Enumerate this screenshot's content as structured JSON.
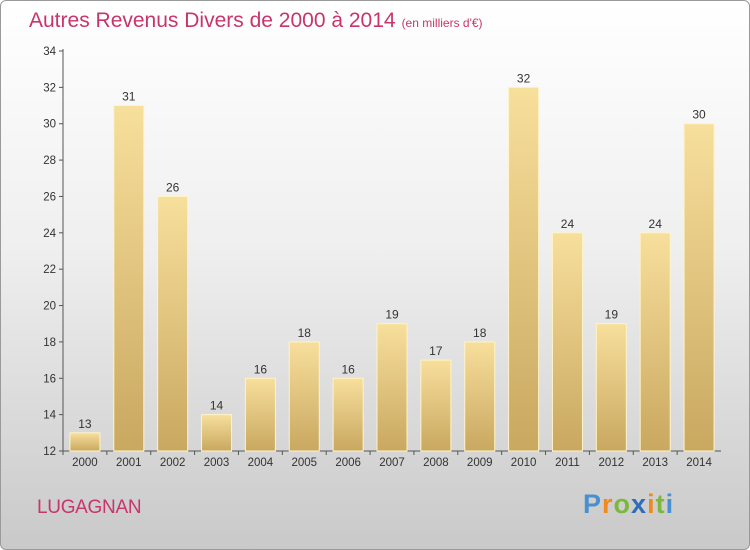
{
  "chart_data": {
    "type": "bar",
    "title": "Autres Revenus Divers de 2000 à 2014",
    "subtitle": "(en milliers d'€)",
    "categories": [
      "2000",
      "2001",
      "2002",
      "2003",
      "2004",
      "2005",
      "2006",
      "2007",
      "2008",
      "2009",
      "2010",
      "2011",
      "2012",
      "2013",
      "2014"
    ],
    "values": [
      13,
      31,
      26,
      14,
      16,
      18,
      16,
      19,
      17,
      18,
      32,
      24,
      19,
      24,
      30
    ],
    "ylim": [
      12,
      34
    ],
    "yticks": [
      12,
      14,
      16,
      18,
      20,
      22,
      24,
      26,
      28,
      30,
      32,
      34
    ],
    "grid": false,
    "xlabel": "",
    "ylabel": "",
    "bar_color": "#e8c87a"
  },
  "commune": "LUGAGNAN",
  "brand": "Proxiti",
  "colors": {
    "title": "#c8356a"
  }
}
